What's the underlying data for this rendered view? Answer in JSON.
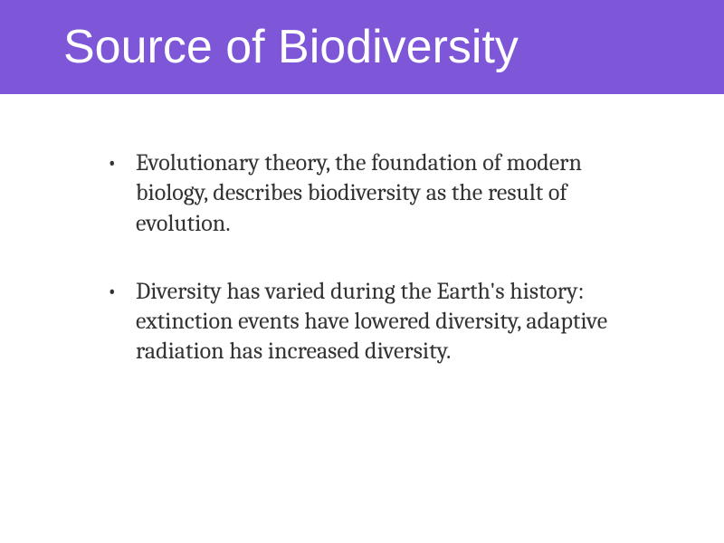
{
  "slide": {
    "title": "Source of Biodiversity",
    "bullets": [
      "Evolutionary theory, the foundation of modern biology, describes biodiversity as the result of evolution.",
      "Diversity has varied during the Earth's history: extinction events have lowered diversity, adaptive radiation has increased diversity."
    ]
  },
  "styling": {
    "title_banner_bg": "#7d57d8",
    "title_text_color": "#ffffff",
    "title_fontsize": 52,
    "title_font_family": "Arial",
    "body_bg": "#ffffff",
    "body_text_color": "#333333",
    "body_fontsize": 26,
    "body_font_family": "Cambria",
    "bullet_char": "•",
    "line_height": 1.28,
    "bullet_spacing": 42
  }
}
